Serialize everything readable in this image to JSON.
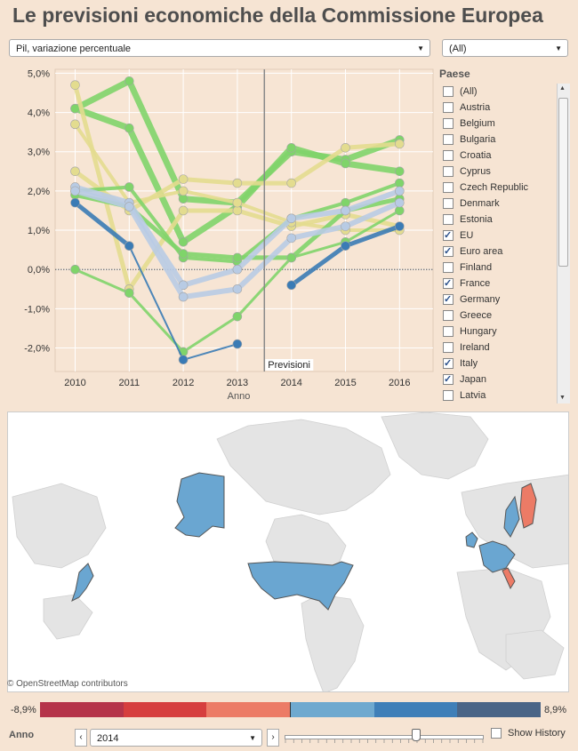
{
  "title": "Le previsioni economiche della Commissione Europea",
  "measure_select": {
    "value": "Pil, variazione percentuale"
  },
  "country_select": {
    "value": "(All)"
  },
  "chart_data": {
    "type": "line",
    "x": [
      2010,
      2011,
      2012,
      2013,
      2014,
      2015,
      2016
    ],
    "xlabel": "Anno",
    "ylabel": "",
    "ylim": [
      -2.6,
      5.1
    ],
    "yticks": [
      -2,
      -1,
      0,
      1,
      2,
      3,
      4,
      5
    ],
    "ytick_labels": [
      "-2,0%",
      "-1,0%",
      "0,0%",
      "1,0%",
      "2,0%",
      "3,0%",
      "4,0%",
      "5,0%"
    ],
    "forecast_start": 2013.5,
    "forecast_label": "Previsioni",
    "grid": true,
    "series": [
      {
        "color": "#7fd46a",
        "width": 7,
        "values": [
          4.1,
          4.8,
          1.8,
          1.7,
          3.0,
          2.8,
          3.3
        ]
      },
      {
        "color": "#7fd46a",
        "width": 7,
        "values": [
          4.1,
          3.6,
          0.7,
          1.6,
          3.1,
          2.7,
          2.5
        ]
      },
      {
        "color": "#e3dc8f",
        "width": 5,
        "values": [
          4.7,
          -0.5,
          1.5,
          1.5,
          1.1,
          1.4,
          1.1
        ]
      },
      {
        "color": "#e3dc8f",
        "width": 5,
        "values": [
          2.5,
          1.5,
          2.3,
          2.2,
          2.2,
          3.1,
          3.2
        ]
      },
      {
        "color": "#e3dc8f",
        "width": 4,
        "values": [
          3.7,
          1.7,
          2.0,
          1.7,
          1.2,
          1.0,
          1.0
        ]
      },
      {
        "color": "#7fd46a",
        "width": 3,
        "values": [
          0.0,
          -0.6,
          -2.1,
          -1.2,
          0.3,
          0.7,
          1.5
        ]
      },
      {
        "color": "#7fd46a",
        "width": 4,
        "values": [
          2.0,
          2.1,
          0.3,
          0.2,
          1.3,
          1.7,
          2.2
        ]
      },
      {
        "color": "#7fd46a",
        "width": 5,
        "values": [
          1.9,
          1.6,
          0.4,
          0.3,
          0.3,
          1.5,
          1.8
        ]
      },
      {
        "color": "#b8cbe4",
        "width": 6,
        "values": [
          2.1,
          1.7,
          -0.4,
          0.0,
          1.3,
          1.5,
          2.0
        ]
      },
      {
        "color": "#b8cbe4",
        "width": 6,
        "values": [
          2.0,
          1.6,
          -0.7,
          -0.5,
          0.8,
          1.1,
          1.7
        ]
      },
      {
        "color": "#3a7bb5",
        "width": 5,
        "values": [
          1.7,
          0.6,
          null,
          null,
          -0.4,
          0.6,
          1.1
        ]
      },
      {
        "color": "#3a7bb5",
        "width": 2,
        "values": [
          null,
          0.6,
          -2.3,
          -1.9,
          null,
          null,
          null
        ]
      }
    ]
  },
  "paese": {
    "title": "Paese",
    "items": [
      {
        "label": "(All)",
        "checked": false
      },
      {
        "label": "Austria",
        "checked": false
      },
      {
        "label": "Belgium",
        "checked": false
      },
      {
        "label": "Bulgaria",
        "checked": false
      },
      {
        "label": "Croatia",
        "checked": false
      },
      {
        "label": "Cyprus",
        "checked": false
      },
      {
        "label": "Czech Republic",
        "checked": false
      },
      {
        "label": "Denmark",
        "checked": false
      },
      {
        "label": "Estonia",
        "checked": false
      },
      {
        "label": "EU",
        "checked": true
      },
      {
        "label": "Euro area",
        "checked": true
      },
      {
        "label": "Finland",
        "checked": false
      },
      {
        "label": "France",
        "checked": true
      },
      {
        "label": "Germany",
        "checked": true
      },
      {
        "label": "Greece",
        "checked": false
      },
      {
        "label": "Hungary",
        "checked": false
      },
      {
        "label": "Ireland",
        "checked": false
      },
      {
        "label": "Italy",
        "checked": true
      },
      {
        "label": "Japan",
        "checked": true
      },
      {
        "label": "Latvia",
        "checked": false
      }
    ]
  },
  "map": {
    "credit": "© OpenStreetMap contributors"
  },
  "legend": {
    "min": "-8,9%",
    "max": "8,9%",
    "colors": [
      "#b5344a",
      "#d63e3e",
      "#ec7b66",
      "#6fa9cf",
      "#3f7fb8",
      "#4a6587"
    ]
  },
  "anno": {
    "label": "Anno",
    "value": "2014",
    "prev": "‹",
    "next": "›",
    "slider_position": 0.66,
    "show_history": "Show History"
  }
}
